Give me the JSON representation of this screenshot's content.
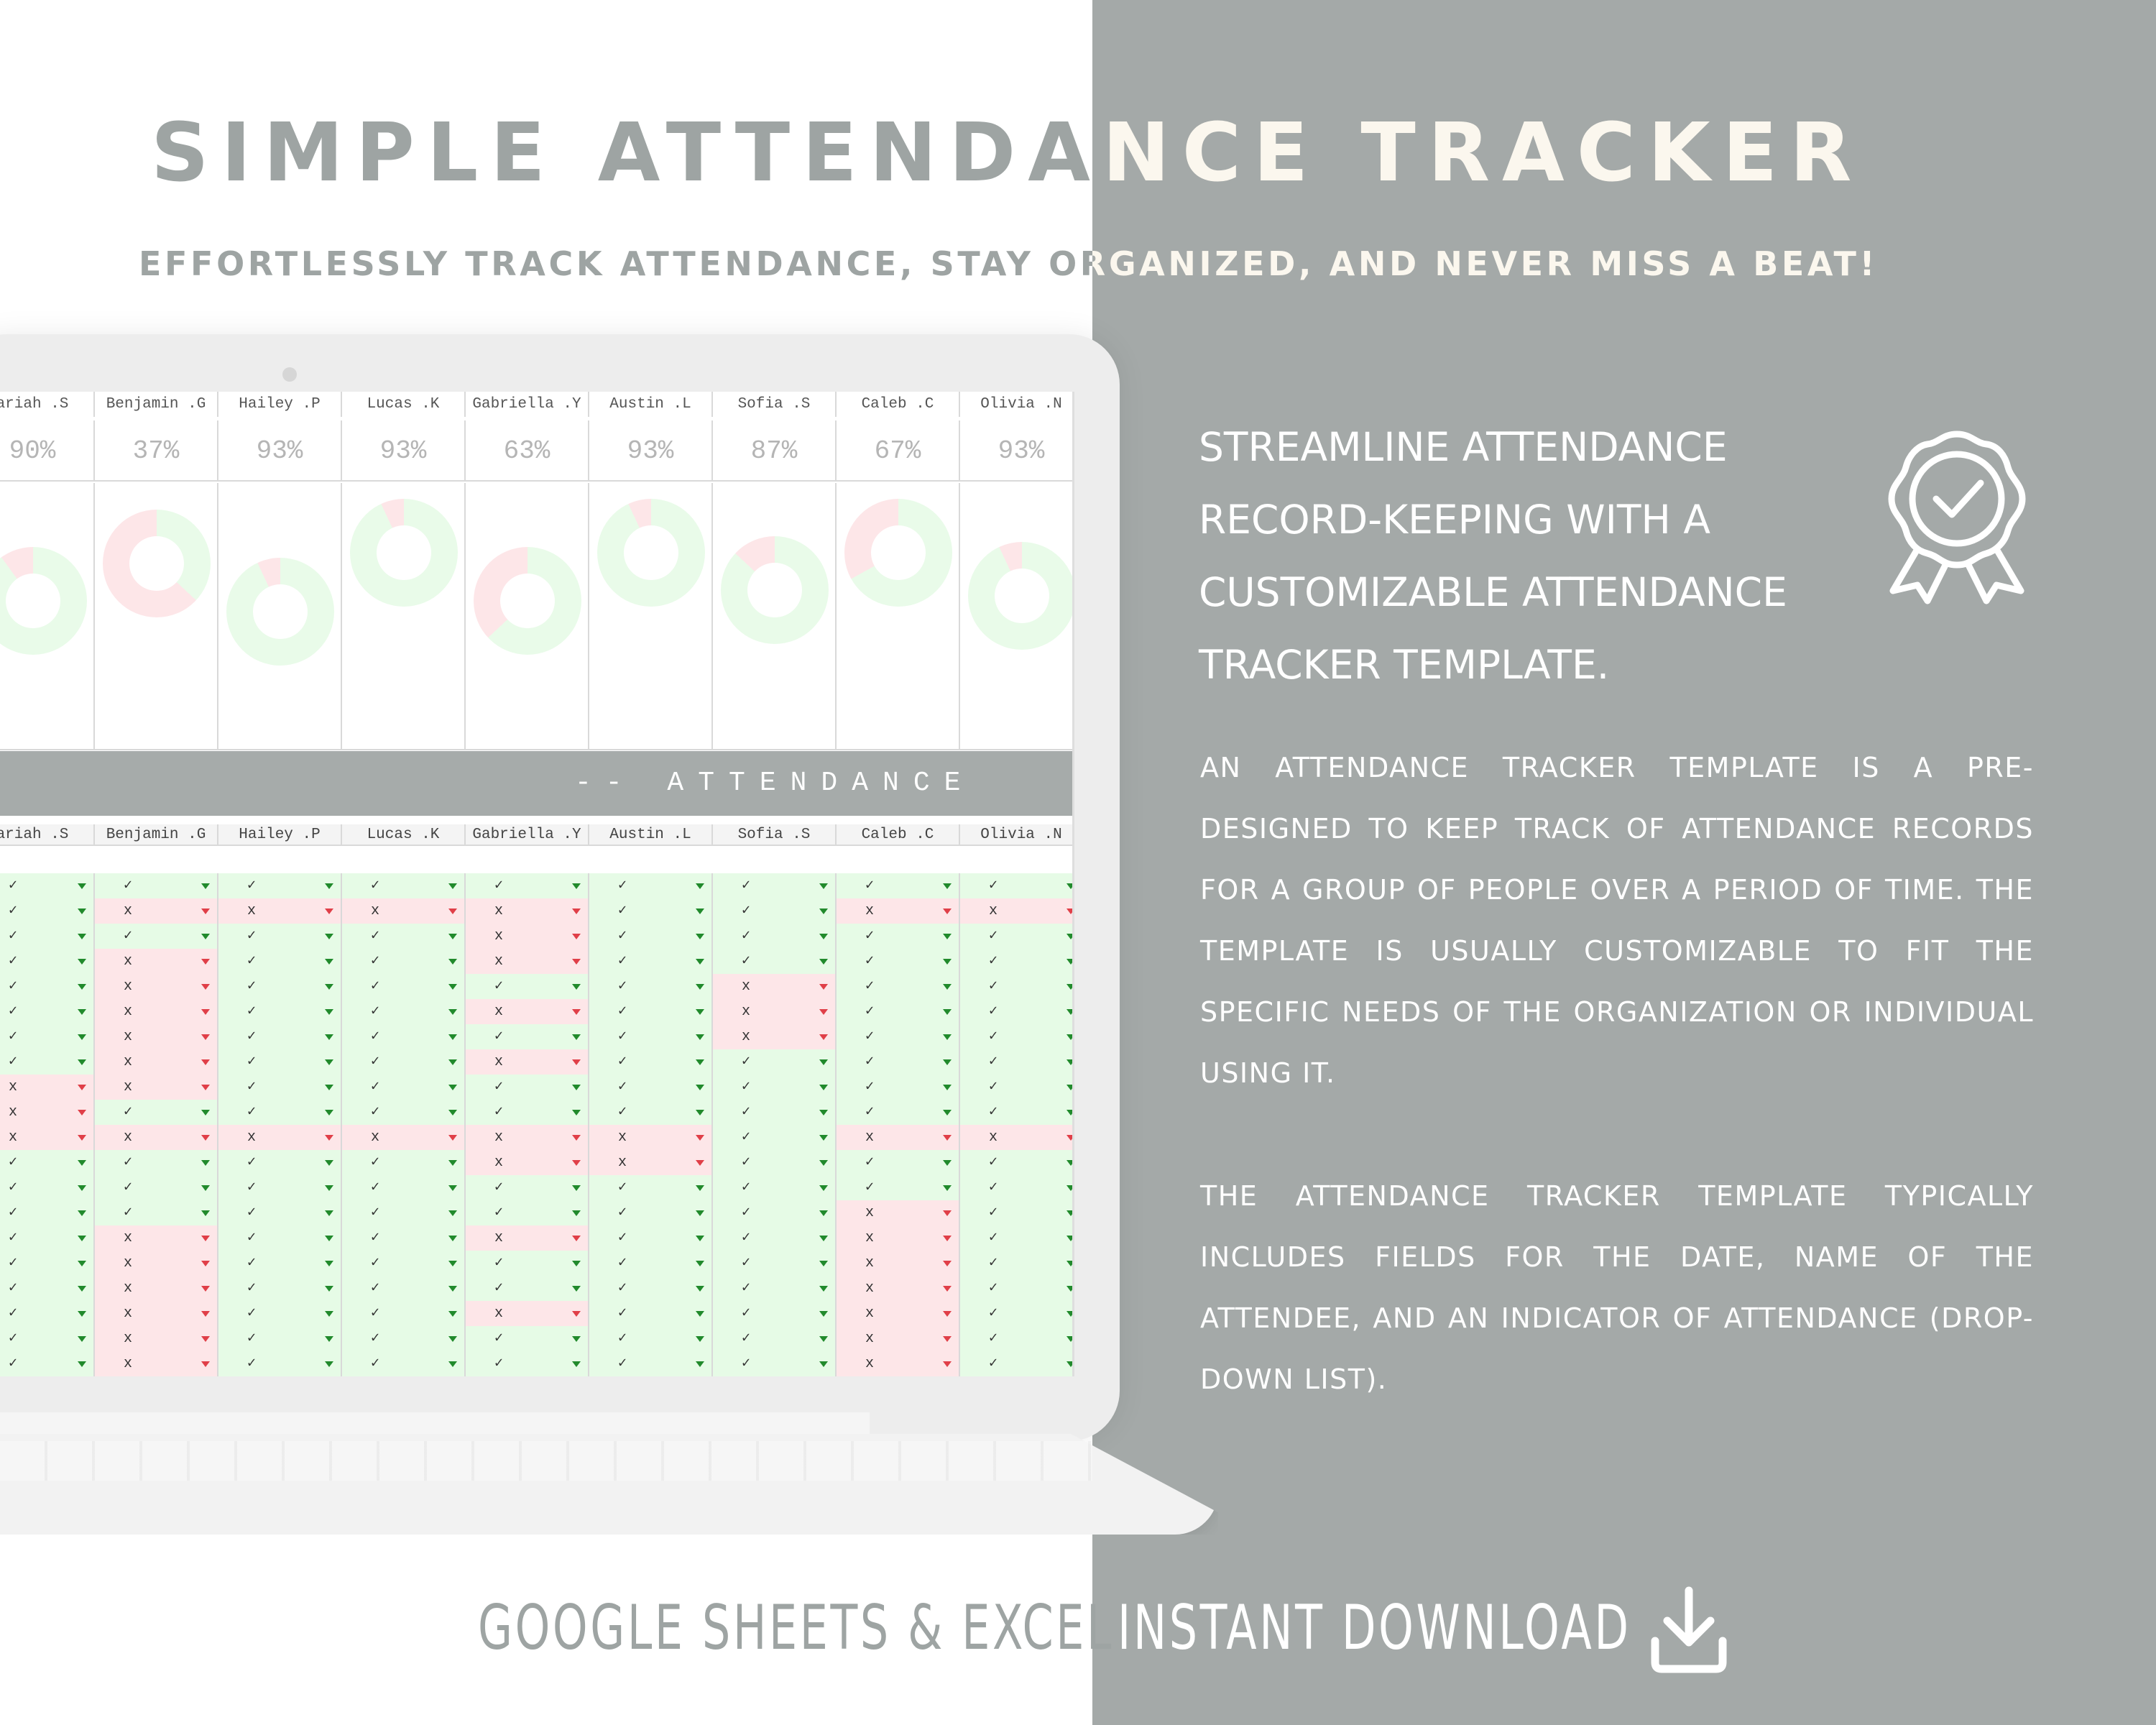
{
  "header": {
    "title": "SIMPLE ATTENDANCE TRACKER",
    "subtitle": "EFFORTLESSLY TRACK ATTENDANCE, STAY ORGANIZED, AND NEVER MISS A BEAT!"
  },
  "colors": {
    "panel_gray": "#a4a9a8",
    "present_green": "#e6fbe6",
    "absent_red": "#fde6e8",
    "donut_green": "#e9fbe9",
    "donut_red": "#fde6e8"
  },
  "spreadsheet": {
    "attendance_title": "-- ATTENDANCE",
    "present_mark": "✓",
    "absent_mark": "x",
    "attendees": [
      {
        "name": "ariah .S",
        "percent": "90%",
        "pct": 0.9,
        "donut_top": 0.24,
        "col": "PPPPPPPPAAAPPPPPPPPPP"
      },
      {
        "name": "Benjamin .G",
        "percent": "37%",
        "pct": 0.37,
        "donut_top": 0.1,
        "col": "PAPAAAAAAPAPPPAAAAAAA"
      },
      {
        "name": "Hailey .P",
        "percent": "93%",
        "pct": 0.93,
        "donut_top": 0.28,
        "col": "PAPPPPPPPPAPPPPPPPPPP"
      },
      {
        "name": "Lucas .K",
        "percent": "93%",
        "pct": 0.93,
        "donut_top": 0.06,
        "col": "PAPPPPPPPPAPPPPPPPPPP"
      },
      {
        "name": "Gabriella .Y",
        "percent": "63%",
        "pct": 0.63,
        "donut_top": 0.24,
        "col": "PAAAPAPAPPAAPPAPPAPPP"
      },
      {
        "name": "Austin .L",
        "percent": "93%",
        "pct": 0.93,
        "donut_top": 0.06,
        "col": "PPPPPPPPPPAAPPPPPPPPP"
      },
      {
        "name": "Sofia .S",
        "percent": "87%",
        "pct": 0.87,
        "donut_top": 0.2,
        "col": "PPPPAAAPPPPPPPPPPPPPP"
      },
      {
        "name": "Caleb .C",
        "percent": "67%",
        "pct": 0.67,
        "donut_top": 0.06,
        "col": "PAPPPPPPPPAPPAAAAAAAA"
      },
      {
        "name": "Olivia .N",
        "percent": "93%",
        "pct": 0.93,
        "donut_top": 0.22,
        "col": "PAPPPPPPPPAPPPPPPPPPP"
      }
    ]
  },
  "feature": {
    "heading_lines": [
      "STREAMLINE ATTENDANCE",
      "RECORD-KEEPING WITH A",
      "CUSTOMIZABLE ATTENDANCE",
      "TRACKER TEMPLATE."
    ],
    "badge_icon": "award-badge-icon",
    "paragraph_1": "AN ATTENDANCE TRACKER TEMPLATE IS A PRE-DESIGNED TO KEEP TRACK OF ATTENDANCE RECORDS FOR A GROUP OF PEOPLE OVER A PERIOD OF TIME. THE TEMPLATE IS USUALLY CUSTOMIZABLE TO FIT THE SPECIFIC NEEDS OF THE ORGANIZATION OR INDIVIDUAL USING IT.",
    "paragraph_2": "THE ATTENDANCE TRACKER TEMPLATE TYPICALLY INCLUDES FIELDS FOR THE DATE, NAME OF THE ATTENDEE, AND AN INDICATOR OF ATTENDANCE (DROP-DOWN LIST)."
  },
  "footer": {
    "left": "GOOGLE SHEETS & EXCEL",
    "right": "INSTANT DOWNLOAD",
    "icon": "download-icon"
  }
}
